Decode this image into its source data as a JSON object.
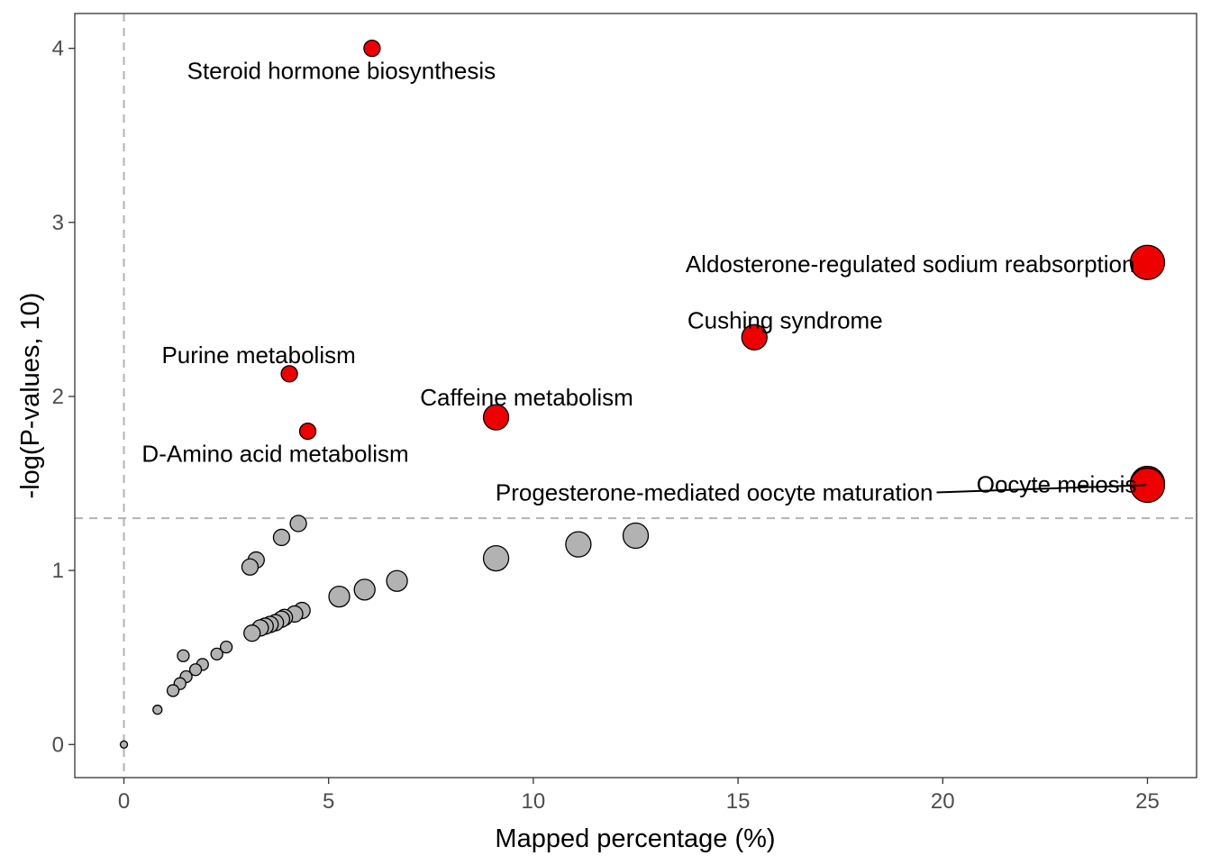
{
  "chart_data": {
    "type": "scatter",
    "xlabel": "Mapped percentage (%)",
    "ylabel": "-log(P-values, 10)",
    "xlim": [
      -1.2,
      26.2
    ],
    "ylim": [
      -0.19,
      4.2
    ],
    "xticks": [
      "0",
      "5",
      "10",
      "15",
      "20",
      "25"
    ],
    "yticks": [
      "0",
      "1",
      "2",
      "3",
      "4"
    ],
    "grid": false,
    "threshold_lines": {
      "x": 0,
      "y": 1.3
    },
    "colors": {
      "significant": "#ee0000",
      "not_significant": "#b2b2b2",
      "outline": "#000000",
      "threshold": "#b3b3b3"
    },
    "significant_points": [
      {
        "label": "Steroid hormone biosynthesis",
        "x": 6.06,
        "y": 4.0,
        "size": 1
      },
      {
        "label": "Aldosterone-regulated sodium reabsorption",
        "x": 25.0,
        "y": 2.77,
        "size": 3
      },
      {
        "label": "Cushing syndrome",
        "x": 15.4,
        "y": 2.34,
        "size": 2
      },
      {
        "label": "Purine metabolism",
        "x": 4.04,
        "y": 2.13,
        "size": 1
      },
      {
        "label": "Caffeine metabolism",
        "x": 9.09,
        "y": 1.88,
        "size": 2
      },
      {
        "label": "D-Amino acid metabolism",
        "x": 4.49,
        "y": 1.8,
        "size": 1
      },
      {
        "label": "Oocyte meiosis",
        "x": 25.0,
        "y": 1.5,
        "size": 3
      },
      {
        "label": "Progesterone-mediated oocyte maturation",
        "x": 25.0,
        "y": 1.49,
        "size": 3
      }
    ],
    "other_points": [
      {
        "x": 12.5,
        "y": 1.2,
        "size": 2
      },
      {
        "x": 11.1,
        "y": 1.15,
        "size": 2
      },
      {
        "x": 9.09,
        "y": 1.07,
        "size": 2
      },
      {
        "x": 6.67,
        "y": 0.94,
        "size": 1.5
      },
      {
        "x": 5.88,
        "y": 0.89,
        "size": 1.5
      },
      {
        "x": 5.26,
        "y": 0.85,
        "size": 1.5
      },
      {
        "x": 4.26,
        "y": 1.27,
        "size": 1
      },
      {
        "x": 3.85,
        "y": 1.19,
        "size": 1
      },
      {
        "x": 3.23,
        "y": 1.06,
        "size": 1
      },
      {
        "x": 3.08,
        "y": 1.02,
        "size": 1
      },
      {
        "x": 4.35,
        "y": 0.77,
        "size": 1
      },
      {
        "x": 4.17,
        "y": 0.75,
        "size": 1
      },
      {
        "x": 3.92,
        "y": 0.73,
        "size": 1
      },
      {
        "x": 3.85,
        "y": 0.72,
        "size": 1
      },
      {
        "x": 3.7,
        "y": 0.7,
        "size": 1
      },
      {
        "x": 3.57,
        "y": 0.69,
        "size": 1
      },
      {
        "x": 3.45,
        "y": 0.68,
        "size": 1
      },
      {
        "x": 3.33,
        "y": 0.67,
        "size": 1
      },
      {
        "x": 3.13,
        "y": 0.64,
        "size": 1
      },
      {
        "x": 2.5,
        "y": 0.56,
        "size": 0.5
      },
      {
        "x": 2.27,
        "y": 0.52,
        "size": 0.5
      },
      {
        "x": 1.45,
        "y": 0.51,
        "size": 0.5
      },
      {
        "x": 1.92,
        "y": 0.46,
        "size": 0.5
      },
      {
        "x": 1.75,
        "y": 0.43,
        "size": 0.5
      },
      {
        "x": 1.52,
        "y": 0.39,
        "size": 0.5
      },
      {
        "x": 1.37,
        "y": 0.35,
        "size": 0.5
      },
      {
        "x": 1.2,
        "y": 0.31,
        "size": 0.5
      },
      {
        "x": 0.82,
        "y": 0.2,
        "size": 0.2
      },
      {
        "x": 0.0,
        "y": 0.0,
        "size": 0
      }
    ]
  }
}
